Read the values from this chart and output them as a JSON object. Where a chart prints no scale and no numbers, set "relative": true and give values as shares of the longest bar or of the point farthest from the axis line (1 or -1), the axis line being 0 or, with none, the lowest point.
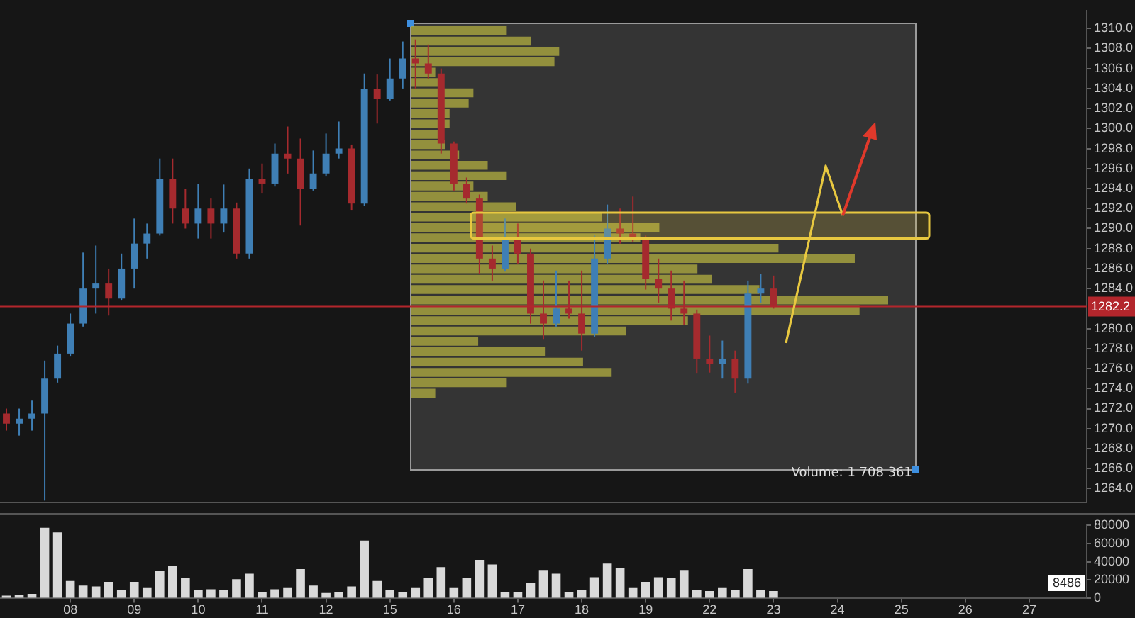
{
  "chart_data": [
    {
      "type": "candlestick",
      "categories": [
        null,
        null,
        null,
        null,
        null,
        "08",
        null,
        null,
        null,
        null,
        "09",
        null,
        null,
        null,
        null,
        "10",
        null,
        null,
        null,
        null,
        "11",
        null,
        null,
        null,
        null,
        "12",
        null,
        null,
        null,
        null,
        "15",
        null,
        null,
        null,
        null,
        "16",
        null,
        null,
        null,
        null,
        "17",
        null,
        null,
        null,
        null,
        "18",
        null,
        null,
        null,
        null,
        "19",
        null,
        null,
        null,
        null,
        "22",
        null,
        null,
        null,
        null,
        "23",
        null,
        null,
        null,
        null,
        "24",
        null,
        null,
        null,
        null,
        "25",
        null,
        null,
        null,
        null,
        "26",
        null,
        null,
        null,
        null,
        "27",
        null,
        null,
        null,
        null
      ],
      "ohlc": [
        [
          1271.5,
          1272,
          1269.8,
          1270.5
        ],
        [
          1270.5,
          1272,
          1269.3,
          1271
        ],
        [
          1271,
          1272.8,
          1269.8,
          1271.5
        ],
        [
          1271.5,
          1276.8,
          1262.8,
          1275
        ],
        [
          1275,
          1278.3,
          1274.6,
          1277.5
        ],
        [
          1277.5,
          1281.5,
          1277.2,
          1280.5
        ],
        [
          1280.5,
          1287.6,
          1280.2,
          1284
        ],
        [
          1284,
          1288.3,
          1281.5,
          1284.5
        ],
        [
          1284.5,
          1286,
          1281.3,
          1283
        ],
        [
          1283,
          1287.5,
          1282.8,
          1286
        ],
        [
          1286,
          1291,
          1284,
          1288.5
        ],
        [
          1288.5,
          1290.5,
          1287,
          1289.5
        ],
        [
          1289.5,
          1297,
          1289.3,
          1295
        ],
        [
          1295,
          1297,
          1290.5,
          1292
        ],
        [
          1292,
          1294,
          1290,
          1290.5
        ],
        [
          1290.5,
          1294.5,
          1289,
          1292
        ],
        [
          1292,
          1293,
          1289,
          1290.5
        ],
        [
          1290.5,
          1294.4,
          1289.6,
          1292
        ],
        [
          1292,
          1292.6,
          1287,
          1287.5
        ],
        [
          1287.5,
          1296,
          1287,
          1295
        ],
        [
          1295,
          1296.5,
          1293.5,
          1294.5
        ],
        [
          1294.5,
          1298.5,
          1294.2,
          1297.5
        ],
        [
          1297.5,
          1300.2,
          1295.5,
          1297
        ],
        [
          1297,
          1299,
          1290.3,
          1294
        ],
        [
          1294,
          1297.8,
          1293.8,
          1295.5
        ],
        [
          1295.5,
          1299.5,
          1295.2,
          1297.5
        ],
        [
          1297.5,
          1300.7,
          1297,
          1298
        ],
        [
          1298,
          1298.4,
          1291.8,
          1292.5
        ],
        [
          1292.5,
          1305.5,
          1292.3,
          1304
        ],
        [
          1304,
          1305.4,
          1300.5,
          1303
        ],
        [
          1303,
          1307,
          1302.8,
          1305
        ],
        [
          1305,
          1308.7,
          1304,
          1307
        ],
        [
          1307,
          1308.9,
          1304,
          1306.5
        ],
        [
          1306.5,
          1308.4,
          1305,
          1305.5
        ],
        [
          1305.5,
          1306,
          1297.5,
          1298.5
        ],
        [
          1298.5,
          1298.7,
          1293.8,
          1294.5
        ],
        [
          1294.5,
          1295.1,
          1292.5,
          1293
        ],
        [
          1293,
          1293.4,
          1285.5,
          1287
        ],
        [
          1287,
          1288.3,
          1284.8,
          1286
        ],
        [
          1286,
          1291,
          1285.7,
          1289
        ],
        [
          1289,
          1290.5,
          1286.5,
          1287.5
        ],
        [
          1287.5,
          1288,
          1280.5,
          1281.5
        ],
        [
          1281.5,
          1284.8,
          1278.9,
          1280.5
        ],
        [
          1280.5,
          1285.8,
          1280.2,
          1282
        ],
        [
          1282,
          1284.8,
          1281,
          1281.5
        ],
        [
          1281.5,
          1285.8,
          1277.8,
          1279.5
        ],
        [
          1279.5,
          1289.3,
          1279.2,
          1287
        ],
        [
          1287,
          1292.4,
          1286.5,
          1290
        ],
        [
          1290,
          1292,
          1288.5,
          1289.5
        ],
        [
          1289.5,
          1293.2,
          1288.7,
          1289
        ],
        [
          1289,
          1289.3,
          1283.9,
          1285
        ],
        [
          1285,
          1287,
          1282.6,
          1284
        ],
        [
          1284,
          1285.8,
          1280.8,
          1282
        ],
        [
          1282,
          1284.8,
          1280.4,
          1281.5
        ],
        [
          1281.5,
          1281.9,
          1275.5,
          1277
        ],
        [
          1277,
          1279.3,
          1275.6,
          1276.5
        ],
        [
          1276.5,
          1278.8,
          1275,
          1277
        ],
        [
          1277,
          1277.8,
          1273.6,
          1275
        ],
        [
          1275,
          1284.8,
          1274.5,
          1283.5
        ],
        [
          1283.5,
          1285.5,
          1282.6,
          1284
        ],
        [
          1284,
          1285.3,
          1282,
          1282.2
        ],
        null,
        null,
        null,
        null,
        null,
        null,
        null,
        null,
        null,
        null,
        null,
        null,
        null,
        null,
        null,
        null,
        null,
        null,
        null,
        null,
        null,
        null,
        null,
        null
      ],
      "colors": [
        "#a52a2e",
        "#3f7fb5",
        "#3f7fb5",
        "#3f7fb5",
        "#3f7fb5",
        "#3f7fb5",
        "#3f7fb5",
        "#3f7fb5",
        "#a52a2e",
        "#3f7fb5",
        "#3f7fb5",
        "#3f7fb5",
        "#3f7fb5",
        "#a52a2e",
        "#a52a2e",
        "#3f7fb5",
        "#a52a2e",
        "#3f7fb5",
        "#a52a2e",
        "#3f7fb5",
        "#a52a2e",
        "#3f7fb5",
        "#a52a2e",
        "#a52a2e",
        "#3f7fb5",
        "#3f7fb5",
        "#3f7fb5",
        "#a52a2e",
        "#3f7fb5",
        "#a52a2e",
        "#3f7fb5",
        "#3f7fb5",
        "#a52a2e",
        "#a52a2e",
        "#a52a2e",
        "#a52a2e",
        "#a52a2e",
        "#a52a2e",
        "#a52a2e",
        "#3f7fb5",
        "#a52a2e",
        "#a52a2e",
        "#a52a2e",
        "#3f7fb5",
        "#a52a2e",
        "#a52a2e",
        "#3f7fb5",
        "#3f7fb5",
        "#a52a2e",
        "#a52a2e",
        "#a52a2e",
        "#a52a2e",
        "#a52a2e",
        "#a52a2e",
        "#a52a2e",
        "#a52a2e",
        "#3f7fb5",
        "#a52a2e",
        "#3f7fb5",
        "#3f7fb5",
        "#a52a2e",
        null,
        null,
        null,
        null,
        null,
        null,
        null,
        null,
        null,
        null,
        null,
        null,
        null,
        null,
        null,
        null,
        null,
        null,
        null,
        null,
        null,
        null,
        null,
        null
      ],
      "ylim": [
        1262.6,
        1311.8
      ],
      "yticks": [
        {
          "value": 1264,
          "label": "1264.0"
        },
        {
          "value": 1266,
          "label": "1266.0"
        },
        {
          "value": 1268,
          "label": "1268.0"
        },
        {
          "value": 1270,
          "label": "1270.0"
        },
        {
          "value": 1272,
          "label": "1272.0"
        },
        {
          "value": 1274,
          "label": "1274.0"
        },
        {
          "value": 1276,
          "label": "1276.0"
        },
        {
          "value": 1278,
          "label": "1278.0"
        },
        {
          "value": 1280,
          "label": "1280.0"
        },
        {
          "value": 1284,
          "label": "1284.0"
        },
        {
          "value": 1286,
          "label": "1286.0"
        },
        {
          "value": 1288,
          "label": "1288.0"
        },
        {
          "value": 1290,
          "label": "1290.0"
        },
        {
          "value": 1292,
          "label": "1292.0"
        },
        {
          "value": 1294,
          "label": "1294.0"
        },
        {
          "value": 1296,
          "label": "1296.0"
        },
        {
          "value": 1298,
          "label": "1298.0"
        },
        {
          "value": 1300,
          "label": "1300.0"
        },
        {
          "value": 1302,
          "label": "1302.0"
        },
        {
          "value": 1304,
          "label": "1304.0"
        },
        {
          "value": 1306,
          "label": "1306.0"
        },
        {
          "value": 1308,
          "label": "1308.0"
        },
        {
          "value": 1310,
          "label": "1310.0"
        }
      ],
      "ref_lines": [
        {
          "axis": "y",
          "value": 1282.2,
          "label": "1282.2",
          "color": "#b3262c"
        }
      ],
      "bands": [
        {
          "axis": "y",
          "from": 1289.0,
          "to": 1291.6,
          "color": "#e8c840"
        }
      ],
      "tick_labels": "y"
    },
    {
      "type": "bar",
      "categories": [
        null,
        null,
        null,
        null,
        null,
        "08",
        null,
        null,
        null,
        null,
        "09",
        null,
        null,
        null,
        null,
        "10",
        null,
        null,
        null,
        null,
        "11",
        null,
        null,
        null,
        null,
        "12",
        null,
        null,
        null,
        null,
        "15",
        null,
        null,
        null,
        null,
        "16",
        null,
        null,
        null,
        null,
        "17",
        null,
        null,
        null,
        null,
        "18",
        null,
        null,
        null,
        null,
        "19",
        null,
        null,
        null,
        null,
        "22",
        null,
        null,
        null,
        null,
        "23",
        null,
        null,
        null,
        null,
        "24",
        null,
        null,
        null,
        null,
        "25",
        null,
        null,
        null,
        null,
        "26",
        null,
        null,
        null,
        null,
        "27",
        null,
        null,
        null,
        null
      ],
      "values": [
        3000,
        4000,
        5000,
        77000,
        72000,
        19000,
        14000,
        13000,
        18000,
        9000,
        18000,
        12000,
        30000,
        35000,
        22000,
        9000,
        10000,
        9000,
        21000,
        27000,
        7000,
        10000,
        12000,
        32000,
        14000,
        6000,
        7000,
        13000,
        63000,
        19000,
        9000,
        7000,
        12000,
        22000,
        34000,
        12000,
        22000,
        42000,
        37000,
        7000,
        7000,
        17000,
        31000,
        27000,
        7000,
        9000,
        23000,
        38000,
        33000,
        12000,
        18000,
        23000,
        22000,
        31000,
        9000,
        8000,
        12000,
        9000,
        32000,
        9000,
        8000,
        null,
        null,
        null,
        null,
        null,
        null,
        null,
        null,
        null,
        null,
        null,
        null,
        null,
        null,
        null,
        null,
        null,
        null,
        null,
        null,
        null,
        null,
        null,
        null
      ],
      "color": "#d9d9d9",
      "ylim": [
        0,
        80000
      ],
      "yticks": [
        0,
        20000,
        40000,
        60000,
        80000
      ],
      "annotations": [
        "8486"
      ]
    },
    {
      "type": "bar",
      "orientation": "horizontal",
      "relative": true,
      "categories": [
        null,
        null,
        null,
        null,
        null,
        null,
        null,
        null,
        null,
        null,
        null,
        null,
        null,
        null,
        null,
        null,
        null,
        null,
        null,
        null,
        null,
        null,
        null,
        null,
        null,
        null,
        null,
        null,
        null,
        null,
        null,
        null,
        null,
        null,
        null,
        null
      ],
      "values": [
        0.2,
        0.25,
        0.31,
        0.3,
        0.05,
        0.06,
        0.13,
        0.12,
        0.08,
        0.08,
        0.06,
        0.07,
        0.1,
        0.16,
        0.2,
        0.13,
        0.16,
        0.22,
        0.4,
        0.52,
        0.48,
        0.77,
        0.93,
        0.6,
        0.63,
        0.73,
        1,
        0.94,
        0.58,
        0.45,
        0.14,
        0.28,
        0.36,
        0.42,
        0.2,
        0.05
      ],
      "color": "#a9a540",
      "annotations": [
        "Volume: 1 708 361"
      ]
    }
  ]
}
